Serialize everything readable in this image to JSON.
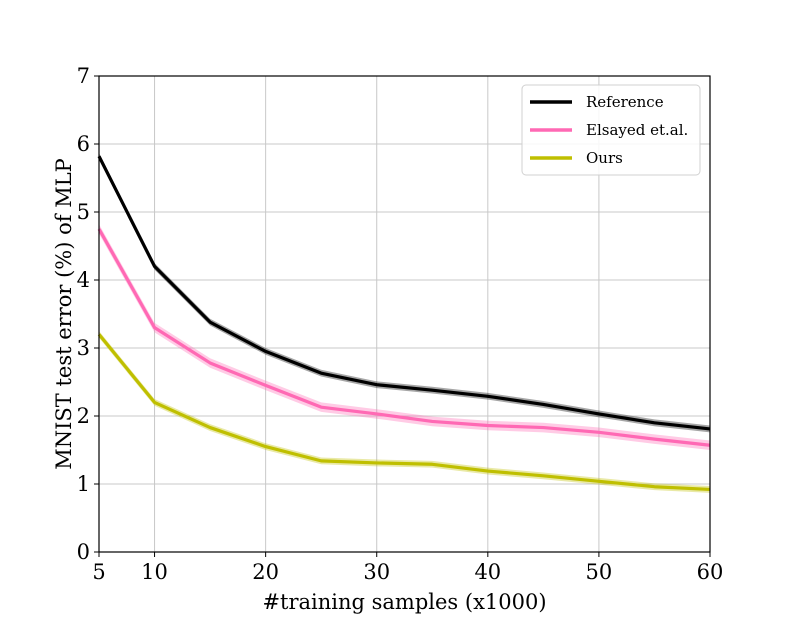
{
  "chart_data": {
    "type": "line",
    "title": "",
    "xlabel": "#training samples (x1000)",
    "ylabel": "MNIST test error (%) of  MLP",
    "xlim": [
      5,
      60
    ],
    "ylim": [
      0,
      7
    ],
    "xticks": [
      5,
      10,
      20,
      30,
      40,
      50,
      60
    ],
    "yticks": [
      0,
      1,
      2,
      3,
      4,
      5,
      6,
      7
    ],
    "grid": true,
    "legend_position": "top-right",
    "x": [
      5,
      10,
      15,
      20,
      25,
      30,
      35,
      40,
      45,
      50,
      55,
      60
    ],
    "series": [
      {
        "name": "Reference",
        "color": "#000000",
        "values": [
          5.82,
          4.2,
          3.38,
          2.95,
          2.63,
          2.46,
          2.38,
          2.29,
          2.17,
          2.03,
          1.9,
          1.81
        ],
        "band": 0.05
      },
      {
        "name": "Elsayed et.al.",
        "color": "#ff69b4",
        "values": [
          4.75,
          3.3,
          2.78,
          2.45,
          2.13,
          2.03,
          1.92,
          1.86,
          1.83,
          1.76,
          1.66,
          1.57
        ],
        "band": 0.07
      },
      {
        "name": "Ours",
        "color": "#bfbf00",
        "values": [
          3.2,
          2.2,
          1.83,
          1.55,
          1.34,
          1.31,
          1.29,
          1.19,
          1.12,
          1.04,
          0.96,
          0.92
        ],
        "band": 0.05
      }
    ]
  }
}
